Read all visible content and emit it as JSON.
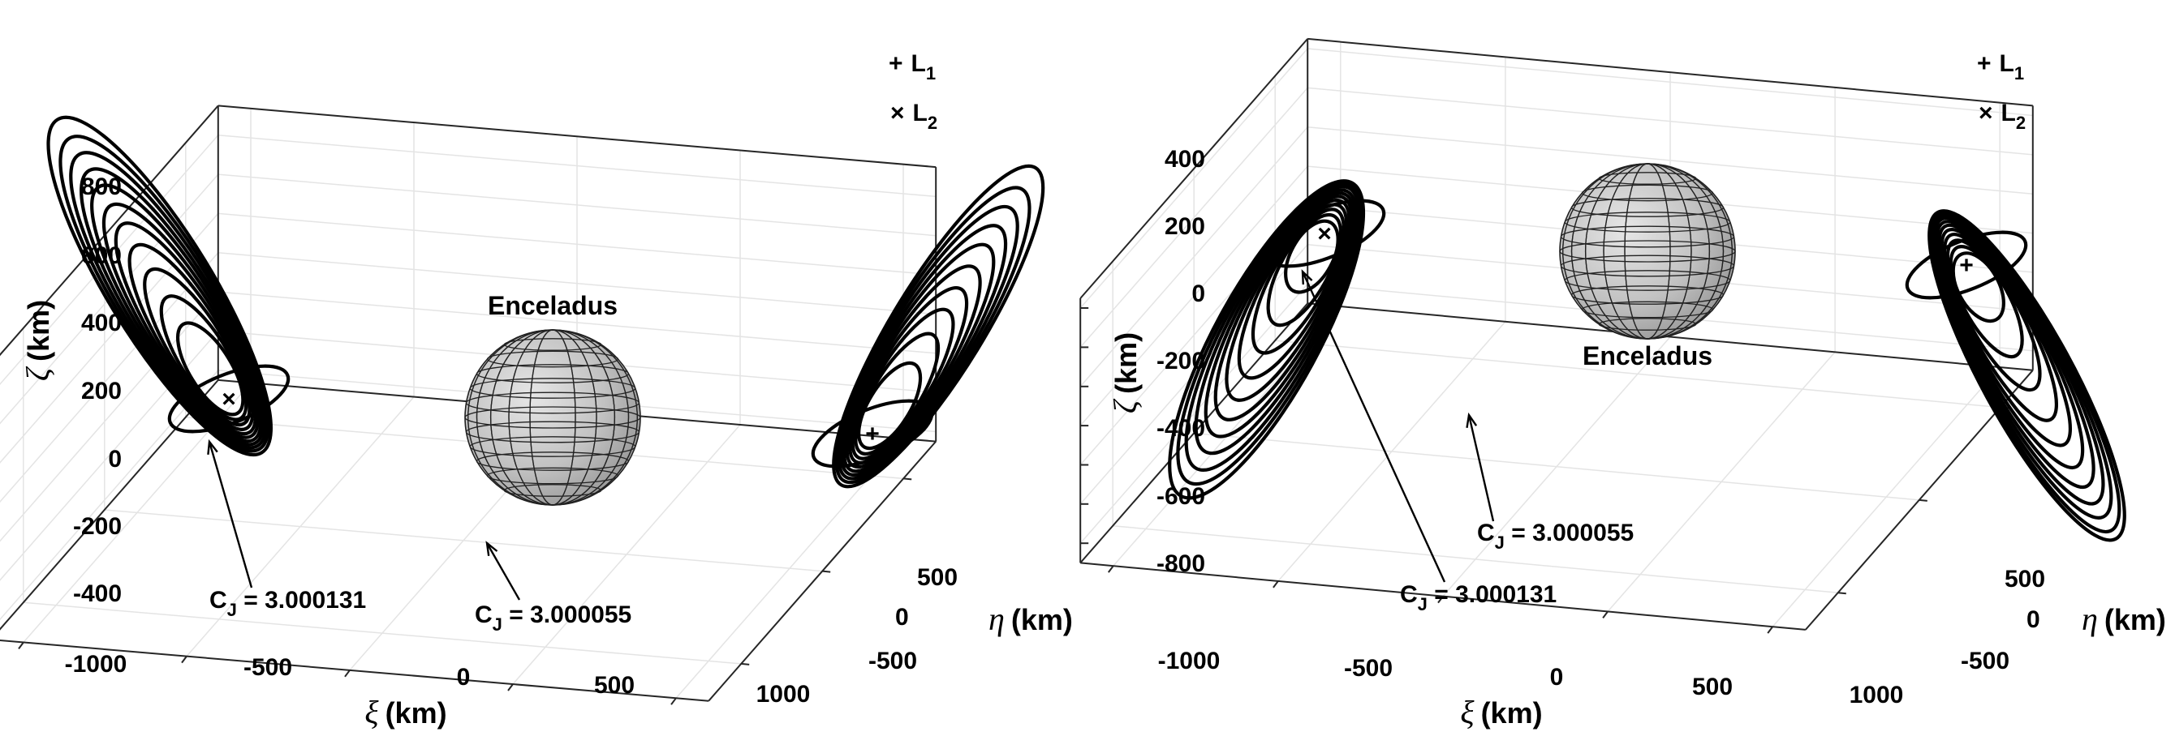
{
  "chart_data": [
    {
      "type": "line",
      "panel": "left",
      "view": "3d",
      "axes": {
        "x": {
          "symbol": "ξ",
          "label": "(km)",
          "ticks": [
            "-1000",
            "-500",
            "0",
            "500",
            "1000"
          ],
          "lim": [
            -1100,
            1100
          ]
        },
        "y": {
          "symbol": "η",
          "label": "(km)",
          "ticks": [
            "-500",
            "0",
            "500"
          ],
          "lim": [
            -700,
            700
          ]
        },
        "z": {
          "symbol": "ζ",
          "label": "(km)",
          "ticks": [
            "-400",
            "-200",
            "0",
            "200",
            "400",
            "600",
            "800"
          ],
          "lim": [
            -450,
            950
          ]
        }
      },
      "grid": true,
      "legend": {
        "placement": "top-right",
        "entries": [
          {
            "marker": "+",
            "text": "L",
            "sub": "1"
          },
          {
            "marker": "×",
            "text": "L",
            "sub": "2"
          }
        ]
      },
      "body": {
        "name": "Enceladus",
        "radius_km": 252
      },
      "families": [
        {
          "side": "L2",
          "orbit_count": 11,
          "zeta_max_km": [
            170,
            270,
            370,
            460,
            540,
            610,
            680,
            740,
            800,
            860,
            930
          ]
        },
        {
          "side": "L1",
          "orbit_count": 10,
          "zeta_max_km": [
            150,
            260,
            350,
            430,
            510,
            590,
            660,
            730,
            800,
            880
          ]
        }
      ],
      "markers": [
        {
          "symbol": "+",
          "label": "L1",
          "xi_km": 640
        },
        {
          "symbol": "×",
          "label": "L2",
          "xi_km": -640
        }
      ],
      "annotations": [
        {
          "prefix": "C",
          "sub": "J",
          "value": " = 3.000131"
        },
        {
          "prefix": "C",
          "sub": "J",
          "value": " = 3.000055"
        }
      ]
    },
    {
      "type": "line",
      "panel": "right",
      "view": "3d",
      "axes": {
        "x": {
          "symbol": "ξ",
          "label": "(km)",
          "ticks": [
            "-1000",
            "-500",
            "0",
            "500",
            "1000"
          ],
          "lim": [
            -1100,
            1100
          ]
        },
        "y": {
          "symbol": "η",
          "label": "(km)",
          "ticks": [
            "-500",
            "0",
            "500"
          ],
          "lim": [
            -700,
            700
          ]
        },
        "z": {
          "symbol": "ζ",
          "label": "(km)",
          "ticks": [
            "-800",
            "-600",
            "-400",
            "-200",
            "0",
            "200",
            "400"
          ],
          "lim": [
            -900,
            450
          ]
        }
      },
      "grid": true,
      "legend": {
        "placement": "top-right",
        "entries": [
          {
            "marker": "+",
            "text": "L",
            "sub": "1"
          },
          {
            "marker": "×",
            "text": "L",
            "sub": "2"
          }
        ]
      },
      "body": {
        "name": "Enceladus",
        "radius_km": 252
      },
      "families": [
        {
          "side": "L2",
          "orbit_count": 11,
          "zeta_min_km": [
            -100,
            -220,
            -320,
            -410,
            -490,
            -560,
            -620,
            -680,
            -740,
            -790,
            -840
          ]
        },
        {
          "side": "L1",
          "orbit_count": 11,
          "zeta_min_km": [
            -90,
            -220,
            -340,
            -450,
            -540,
            -620,
            -690,
            -750,
            -800,
            -850,
            -880
          ]
        }
      ],
      "markers": [
        {
          "symbol": "+",
          "label": "L1",
          "xi_km": 640
        },
        {
          "symbol": "×",
          "label": "L2",
          "xi_km": -640
        }
      ],
      "annotations": [
        {
          "prefix": "C",
          "sub": "J",
          "value": " = 3.000055"
        },
        {
          "prefix": "C",
          "sub": "J",
          "value": " = 3.000131"
        }
      ]
    }
  ]
}
